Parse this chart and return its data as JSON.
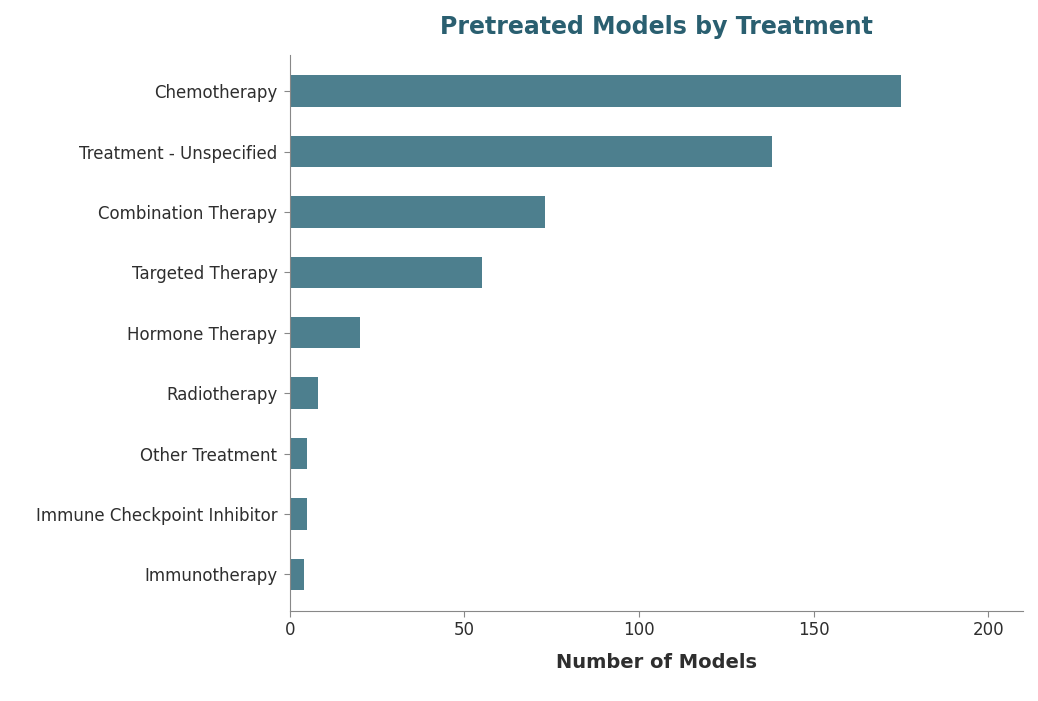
{
  "title": "Pretreated Models by Treatment",
  "categories": [
    "Chemotherapy",
    "Treatment - Unspecified",
    "Combination Therapy",
    "Targeted Therapy",
    "Hormone Therapy",
    "Radiotherapy",
    "Other Treatment",
    "Immune Checkpoint Inhibitor",
    "Immunotherapy"
  ],
  "values": [
    175,
    138,
    73,
    55,
    20,
    8,
    5,
    5,
    4
  ],
  "bar_color": "#4d7f8e",
  "xlabel": "Number of Models",
  "xlim": [
    0,
    210
  ],
  "xticks": [
    0,
    50,
    100,
    150,
    200
  ],
  "title_fontsize": 17,
  "label_fontsize": 13,
  "tick_fontsize": 12,
  "background_color": "#ffffff",
  "title_color": "#2a5f70",
  "label_color": "#2e2e2e"
}
